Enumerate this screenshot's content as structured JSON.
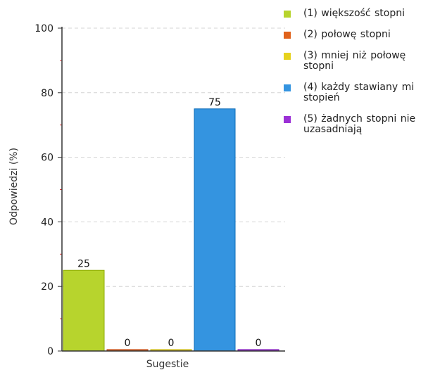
{
  "chart_data": {
    "type": "bar",
    "categories": [
      "(1) większość stopni",
      "(2) połowę stopni",
      "(3) mniej niż połowę stopni",
      "(4) każdy stawiany mi stopień",
      "(5) żadnych stopni nie uzasadniają"
    ],
    "values": [
      25,
      0,
      0,
      75,
      0
    ],
    "colors": [
      "#b7d42d",
      "#e0621b",
      "#e6d21d",
      "#3494e0",
      "#9b30d6"
    ],
    "xlabel": "Sugestie",
    "ylabel": "Odpowiedzi (%)",
    "ylim": [
      0,
      100
    ],
    "yticks": [
      0,
      20,
      40,
      60,
      80,
      100
    ],
    "grid": true,
    "legend_position": "right"
  },
  "legend": {
    "items": [
      {
        "label": "(1) większość stopni",
        "color": "#b7d42d"
      },
      {
        "label": "(2) połowę stopni",
        "color": "#e0621b"
      },
      {
        "label": "(3) mniej niż połowę stopni",
        "color": "#e6d21d"
      },
      {
        "label": "(4) każdy stawiany mi stopień",
        "color": "#3494e0"
      },
      {
        "label": "(5) żadnych stopni nie uzasadniają",
        "color": "#9b30d6"
      }
    ]
  }
}
